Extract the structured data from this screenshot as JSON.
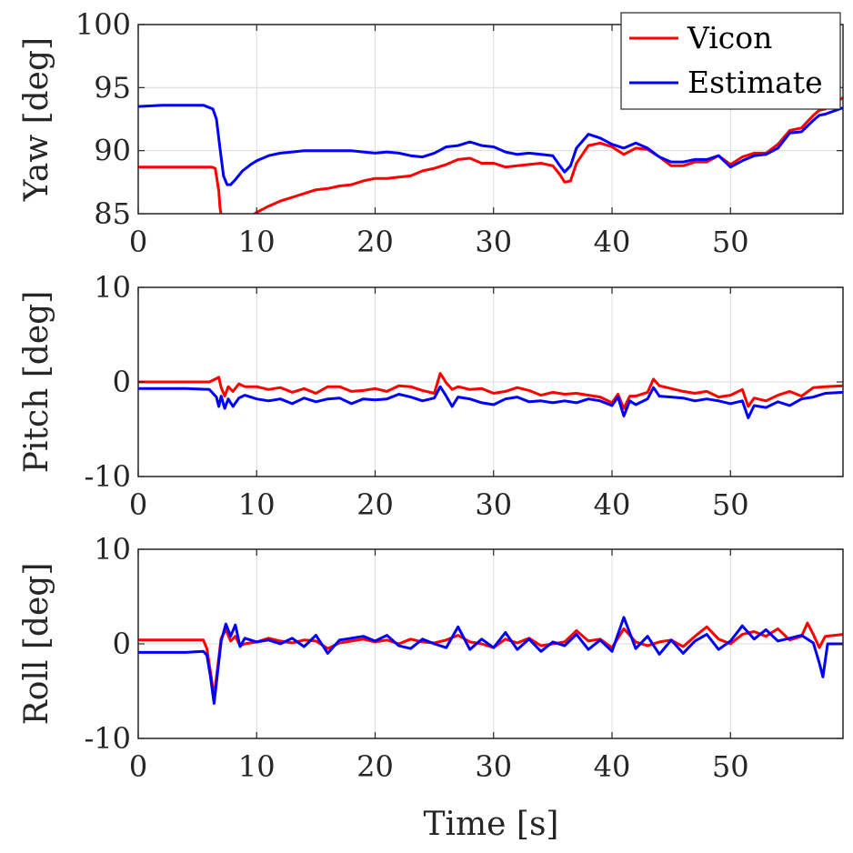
{
  "chart_data": [
    {
      "type": "line",
      "id": "yaw",
      "ylabel": "Yaw [deg]",
      "xlabel": "",
      "xlim": [
        0,
        59.5
      ],
      "ylim": [
        85,
        100
      ],
      "xticks": [
        "0",
        "10",
        "20",
        "30",
        "40",
        "50"
      ],
      "yticks": [
        "85",
        "90",
        "95",
        "100"
      ],
      "grid": true,
      "legend": {
        "location": "top-right",
        "entries": [
          "Vicon",
          "Estimate"
        ]
      },
      "series": [
        {
          "name": "Vicon",
          "color": "#ff0000",
          "x": [
            0,
            6.2,
            6.5,
            6.8,
            6.9,
            7.0
          ],
          "y": [
            88.7,
            88.7,
            88.6,
            86.8,
            85.5,
            84.9
          ],
          "x2": [
            9.5,
            10,
            11,
            12,
            13,
            14,
            15,
            16,
            17,
            18,
            19,
            20,
            21,
            22,
            23,
            24,
            25,
            26,
            27,
            28,
            29,
            30,
            31,
            32,
            33,
            34,
            35,
            35.6,
            36,
            36.5,
            37,
            38,
            39,
            40,
            41,
            42,
            43,
            44,
            45,
            46,
            47,
            48,
            49,
            50,
            51,
            52,
            53,
            54,
            55,
            56,
            57,
            57.5,
            58,
            59.5
          ],
          "y2": [
            84.8,
            85.1,
            85.6,
            86.0,
            86.3,
            86.6,
            86.9,
            87.0,
            87.2,
            87.3,
            87.6,
            87.8,
            87.8,
            87.9,
            88.0,
            88.4,
            88.6,
            88.9,
            89.3,
            89.4,
            89.0,
            89.0,
            88.7,
            88.8,
            88.9,
            89.0,
            88.8,
            88.1,
            87.5,
            87.6,
            89.0,
            90.4,
            90.6,
            90.3,
            89.7,
            90.2,
            90.1,
            89.5,
            88.8,
            88.8,
            89.1,
            89.1,
            89.6,
            88.9,
            89.5,
            89.8,
            89.8,
            90.5,
            91.6,
            91.8,
            92.8,
            93.2,
            93.3,
            94.2
          ]
        },
        {
          "name": "Estimate",
          "color": "#0000ff",
          "x": [
            0,
            2,
            4,
            5.5,
            6.3,
            6.6,
            6.9,
            7.2,
            7.5,
            7.8,
            8.2,
            8.8,
            9.5,
            10,
            11,
            12,
            13,
            14,
            15,
            16,
            17,
            18,
            19,
            20,
            21,
            22,
            23,
            24,
            25,
            26,
            27,
            28,
            29,
            30,
            31,
            32,
            33,
            34,
            35,
            35.6,
            36,
            36.5,
            37,
            38,
            39,
            40,
            41,
            42,
            43,
            44,
            45,
            46,
            47,
            48,
            49,
            50,
            51,
            52,
            53,
            54,
            55,
            56,
            57,
            57.5,
            58,
            59.5
          ],
          "y": [
            93.5,
            93.6,
            93.6,
            93.6,
            93.3,
            92.5,
            90.2,
            88.0,
            87.3,
            87.3,
            87.7,
            88.4,
            88.9,
            89.2,
            89.6,
            89.8,
            89.9,
            90.0,
            90.0,
            90.0,
            90.0,
            90.0,
            89.9,
            89.8,
            89.9,
            89.8,
            89.6,
            89.5,
            89.8,
            90.3,
            90.4,
            90.7,
            90.4,
            90.3,
            89.9,
            89.7,
            89.8,
            89.7,
            89.6,
            88.8,
            88.3,
            88.8,
            90.2,
            91.3,
            91.0,
            90.5,
            90.2,
            90.6,
            90.2,
            89.5,
            89.1,
            89.1,
            89.3,
            89.3,
            89.6,
            88.7,
            89.2,
            89.6,
            89.7,
            90.2,
            91.4,
            91.5,
            92.4,
            92.8,
            92.9,
            93.4
          ]
        }
      ]
    },
    {
      "type": "line",
      "id": "pitch",
      "ylabel": "Pitch [deg]",
      "xlabel": "",
      "xlim": [
        0,
        59.5
      ],
      "ylim": [
        -10,
        10
      ],
      "xticks": [
        "0",
        "10",
        "20",
        "30",
        "40",
        "50"
      ],
      "yticks": [
        "-10",
        "0",
        "10"
      ],
      "grid": true,
      "series": [
        {
          "name": "Vicon",
          "color": "#ff0000",
          "x": [
            0,
            4,
            6,
            6.5,
            6.8,
            7.0,
            7.3,
            7.6,
            8.0,
            8.5,
            9,
            10,
            11,
            12,
            13,
            14,
            15,
            16,
            17,
            18,
            19,
            20,
            21,
            22,
            23,
            24,
            25,
            25.5,
            26,
            26.5,
            27,
            28,
            29,
            30,
            31,
            32,
            33,
            34,
            35,
            36,
            37,
            38,
            39,
            40,
            40.5,
            41,
            41.5,
            42,
            43,
            43.5,
            44,
            45,
            46,
            47,
            48,
            49,
            50,
            51,
            51.5,
            52,
            53,
            54,
            55,
            56,
            57,
            58,
            59.5
          ],
          "y": [
            0.0,
            0.0,
            0.0,
            0.3,
            0.5,
            -0.6,
            -1.5,
            -0.5,
            -1.0,
            -0.2,
            -0.5,
            -0.5,
            -0.8,
            -0.6,
            -1.1,
            -0.7,
            -1.2,
            -0.5,
            -0.5,
            -1.0,
            -0.9,
            -0.7,
            -1.0,
            -0.4,
            -0.5,
            -0.9,
            -1.2,
            0.9,
            -0.1,
            -0.8,
            -0.5,
            -0.8,
            -0.7,
            -1.2,
            -1.0,
            -0.6,
            -0.9,
            -1.4,
            -1.1,
            -1.3,
            -1.2,
            -1.4,
            -1.6,
            -2.2,
            -1.3,
            -2.8,
            -1.5,
            -1.5,
            -1.1,
            0.3,
            -0.4,
            -0.7,
            -1.0,
            -1.2,
            -1.0,
            -1.6,
            -1.4,
            -0.8,
            -2.6,
            -1.7,
            -2.0,
            -1.4,
            -1.0,
            -1.5,
            -0.6,
            -0.5,
            -0.4
          ]
        },
        {
          "name": "Estimate",
          "color": "#0000ff",
          "x": [
            0,
            4,
            6,
            6.3,
            6.6,
            6.8,
            7.0,
            7.3,
            7.6,
            8.0,
            8.5,
            9,
            10,
            11,
            12,
            13,
            14,
            15,
            16,
            17,
            18,
            19,
            20,
            21,
            22,
            23,
            24,
            25,
            25.5,
            26,
            26.5,
            27,
            28,
            29,
            30,
            31,
            32,
            33,
            34,
            35,
            36,
            37,
            38,
            39,
            40,
            40.5,
            41,
            41.5,
            42,
            43,
            43.5,
            44,
            45,
            46,
            47,
            48,
            49,
            50,
            51,
            51.5,
            52,
            53,
            54,
            55,
            56,
            57,
            58,
            59.5
          ],
          "y": [
            -0.7,
            -0.7,
            -0.8,
            -1.2,
            -1.6,
            -2.6,
            -1.5,
            -2.8,
            -1.8,
            -2.6,
            -1.7,
            -1.4,
            -1.8,
            -2.0,
            -1.8,
            -2.3,
            -1.7,
            -2.1,
            -1.8,
            -1.7,
            -2.3,
            -1.8,
            -1.9,
            -1.8,
            -1.3,
            -1.6,
            -2.0,
            -1.7,
            -0.5,
            -1.5,
            -2.6,
            -1.6,
            -1.8,
            -2.2,
            -2.4,
            -1.8,
            -1.6,
            -2.1,
            -2.0,
            -2.2,
            -2.0,
            -2.2,
            -1.8,
            -2.0,
            -2.5,
            -1.6,
            -3.6,
            -2.0,
            -2.4,
            -1.8,
            -0.6,
            -1.5,
            -1.6,
            -1.7,
            -2.0,
            -1.8,
            -2.0,
            -2.3,
            -2.0,
            -3.8,
            -2.5,
            -2.7,
            -2.1,
            -2.5,
            -1.8,
            -1.6,
            -1.2,
            -1.1
          ]
        }
      ]
    },
    {
      "type": "line",
      "id": "roll",
      "ylabel": "Roll [deg]",
      "xlabel": "Time [s]",
      "xlim": [
        0,
        59.5
      ],
      "ylim": [
        -10,
        10
      ],
      "xticks": [
        "0",
        "10",
        "20",
        "30",
        "40",
        "50"
      ],
      "yticks": [
        "-10",
        "0",
        "10"
      ],
      "grid": true,
      "series": [
        {
          "name": "Vicon",
          "color": "#ff0000",
          "x": [
            0,
            4,
            5.5,
            5.8,
            6.1,
            6.4,
            6.7,
            7.0,
            7.4,
            7.8,
            8.2,
            8.6,
            9,
            10,
            11,
            12,
            13,
            14,
            15,
            16,
            17,
            18,
            19,
            20,
            21,
            22,
            23,
            24,
            25,
            26,
            27,
            28,
            29,
            30,
            31,
            32,
            33,
            34,
            35,
            36,
            37,
            38,
            39,
            40,
            41,
            42,
            43,
            44,
            45,
            46,
            47,
            48,
            49,
            50,
            51,
            52,
            53,
            54,
            55,
            56,
            56.5,
            57,
            57.5,
            58,
            59.5
          ],
          "y": [
            0.4,
            0.4,
            0.4,
            -0.5,
            -3.0,
            -5.6,
            -2.5,
            0.6,
            1.5,
            0.3,
            0.8,
            -0.2,
            0.0,
            0.2,
            0.6,
            0.3,
            0.1,
            0.4,
            0.3,
            -0.5,
            0.1,
            0.3,
            0.5,
            0.2,
            0.4,
            0.0,
            0.5,
            0.2,
            0.1,
            0.4,
            0.9,
            0.2,
            0.0,
            -0.4,
            0.5,
            0.1,
            0.6,
            -0.2,
            0.0,
            0.2,
            1.4,
            0.3,
            0.5,
            -0.4,
            1.6,
            0.2,
            -0.2,
            0.2,
            0.4,
            -0.3,
            0.8,
            1.8,
            0.5,
            0.0,
            1.0,
            1.3,
            0.8,
            1.6,
            0.4,
            0.8,
            2.2,
            1.0,
            -0.4,
            0.8,
            1.0
          ]
        },
        {
          "name": "Estimate",
          "color": "#0000ff",
          "x": [
            0,
            4,
            5.5,
            5.8,
            6.1,
            6.4,
            6.7,
            7.0,
            7.4,
            7.8,
            8.2,
            8.6,
            9,
            10,
            11,
            12,
            13,
            14,
            15,
            16,
            17,
            18,
            19,
            20,
            21,
            22,
            23,
            24,
            25,
            26,
            27,
            28,
            29,
            30,
            31,
            32,
            33,
            34,
            35,
            36,
            37,
            38,
            39,
            40,
            41,
            42,
            43,
            44,
            45,
            46,
            47,
            48,
            49,
            50,
            51,
            52,
            53,
            54,
            55,
            56,
            57,
            57.5,
            57.8,
            58.2,
            59.5
          ],
          "y": [
            -0.9,
            -0.9,
            -0.8,
            -1.2,
            -3.5,
            -6.3,
            -3.0,
            0.3,
            2.1,
            0.8,
            2.0,
            -0.3,
            0.6,
            0.2,
            0.4,
            0.0,
            0.6,
            -0.3,
            0.9,
            -1.0,
            0.4,
            0.6,
            0.8,
            0.3,
            0.9,
            -0.2,
            -0.5,
            0.5,
            0.0,
            -0.4,
            1.8,
            -0.6,
            0.5,
            -0.4,
            1.2,
            -0.6,
            0.5,
            -0.8,
            0.2,
            -0.2,
            1.0,
            -0.6,
            0.4,
            -0.8,
            2.8,
            -0.5,
            0.8,
            -1.1,
            0.4,
            -1.0,
            0.3,
            1.0,
            -0.6,
            0.3,
            1.9,
            0.5,
            1.5,
            0.3,
            0.6,
            0.9,
            0.1,
            -2.0,
            -3.5,
            0.0,
            0.0
          ]
        }
      ]
    }
  ]
}
